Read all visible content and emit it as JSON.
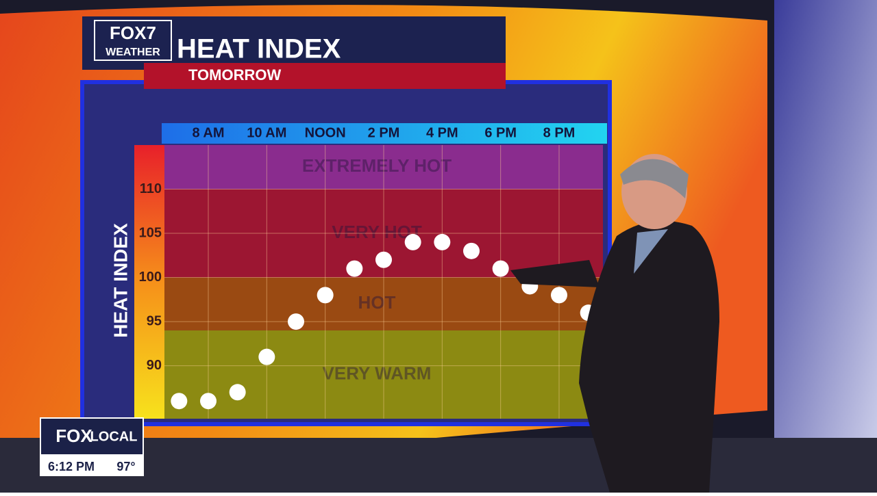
{
  "branding": {
    "station": "FOX7",
    "network": "WEATHER"
  },
  "overlay": {
    "logo_left": "FOX",
    "logo_right": "LOCAL",
    "time": "6:12 PM",
    "temperature": "97°"
  },
  "chart_data": {
    "type": "scatter",
    "title": "HEAT INDEX",
    "subtitle": "TOMORROW",
    "y_label": "HEAT INDEX",
    "categories": [
      null,
      "8 AM",
      null,
      "10 AM",
      null,
      "NOON",
      null,
      "2 PM",
      null,
      "4 PM",
      null,
      "6 PM",
      null,
      "8 PM",
      null
    ],
    "values": [
      86,
      86,
      87,
      91,
      95,
      98,
      101,
      102,
      104,
      104,
      103,
      101,
      99,
      98,
      96
    ],
    "color": "#ffffff",
    "ylim": [
      84,
      115
    ],
    "yticks": [
      90,
      95,
      100,
      105,
      110
    ],
    "grid": true,
    "zones": [
      {
        "name": "VERY WARM",
        "from": 84,
        "to": 94,
        "color": "#8c8a12"
      },
      {
        "name": "HOT",
        "from": 94,
        "to": 100,
        "color": "#9a4a12"
      },
      {
        "name": "VERY HOT",
        "from": 100,
        "to": 110,
        "color": "#9c1632"
      },
      {
        "name": "EXTREMELY HOT",
        "from": 110,
        "to": 115,
        "color": "#8a2c8e"
      }
    ]
  }
}
